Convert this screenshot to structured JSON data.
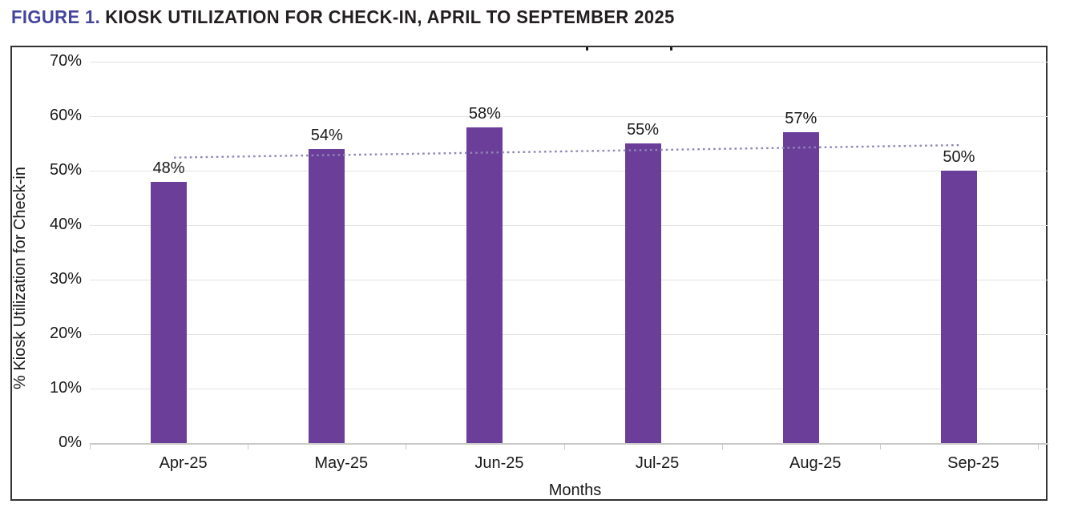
{
  "figure_header": {
    "number": "FIGURE 1.",
    "title": "KIOSK UTILIZATION FOR CHECK-IN, APRIL TO SEPTEMBER 2025"
  },
  "chart_data": {
    "type": "bar",
    "categories": [
      "Apr-25",
      "May-25",
      "Jun-25",
      "Jul-25",
      "Aug-25",
      "Sep-25"
    ],
    "values": [
      48,
      54,
      58,
      55,
      57,
      50
    ],
    "data_labels": [
      "48%",
      "54%",
      "58%",
      "55%",
      "57%",
      "50%"
    ],
    "xlabel": "Months",
    "ylabel": "% Kiosk Utilization for Check-in",
    "ylim": [
      0,
      70
    ],
    "yticks": [
      0,
      10,
      20,
      30,
      40,
      50,
      60,
      70
    ],
    "ytick_labels": [
      "0%",
      "10%",
      "20%",
      "30%",
      "40%",
      "50%",
      "60%",
      "70%"
    ],
    "grid": true,
    "legend_position": "none",
    "bar_color": "#6b3e99",
    "trendline": {
      "type": "linear",
      "style": "dotted",
      "color": "#9186b8",
      "start_value": 52.4,
      "end_value": 54.7
    }
  },
  "colors": {
    "figure_number": "#45459e",
    "figure_title": "#231f20",
    "bar": "#6b3e99",
    "trendline": "#9186b8",
    "gridline": "#e3e3e3",
    "axis_line": "#c9c9c9",
    "frame_border": "#333333",
    "background": "#ffffff"
  }
}
